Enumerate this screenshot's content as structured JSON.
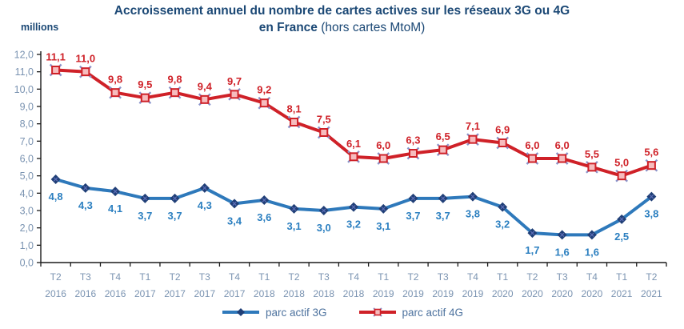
{
  "title": {
    "line1": "Accroissement annuel du nombre de cartes actives sur les réseaux 3G ou 4G",
    "line2_bold": "en France",
    "line2_suffix": " (hors cartes MtoM)"
  },
  "colors": {
    "title": "#1B4875",
    "axis": "#1a1a1a",
    "axis_labels": "#7A93B1",
    "legend_text": "#4D729E"
  },
  "chart_data": {
    "type": "line",
    "title": "Accroissement annuel du nombre de cartes actives sur les réseaux 3G ou 4G en France (hors cartes MtoM)",
    "ylabel": "millions",
    "xlabel": "",
    "ylim": [
      0,
      12
    ],
    "ytick_step": 1,
    "grid": false,
    "legend_position": "bottom",
    "decimal_separator": ",",
    "categories": [
      {
        "q": "T2",
        "year": "2016"
      },
      {
        "q": "T3",
        "year": "2016"
      },
      {
        "q": "T4",
        "year": "2016"
      },
      {
        "q": "T1",
        "year": "2017"
      },
      {
        "q": "T2",
        "year": "2017"
      },
      {
        "q": "T3",
        "year": "2017"
      },
      {
        "q": "T4",
        "year": "2017"
      },
      {
        "q": "T1",
        "year": "2018"
      },
      {
        "q": "T2",
        "year": "2018"
      },
      {
        "q": "T3",
        "year": "2018"
      },
      {
        "q": "T4",
        "year": "2018"
      },
      {
        "q": "T1",
        "year": "2019"
      },
      {
        "q": "T2",
        "year": "2019"
      },
      {
        "q": "T3",
        "year": "2019"
      },
      {
        "q": "T4",
        "year": "2019"
      },
      {
        "q": "T1",
        "year": "2020"
      },
      {
        "q": "T2",
        "year": "2020"
      },
      {
        "q": "T3",
        "year": "2020"
      },
      {
        "q": "T4",
        "year": "2020"
      },
      {
        "q": "T1",
        "year": "2021"
      },
      {
        "q": "T2",
        "year": "2021"
      }
    ],
    "series": [
      {
        "name": "parc actif 3G",
        "marker": "diamond",
        "line_color": "#2E79BB",
        "marker_color": "#203F77",
        "marker_x_color": "#5E6FB8",
        "label_color": "#2B7FC0",
        "label_side": "below",
        "values": [
          4.8,
          4.3,
          4.1,
          3.7,
          3.7,
          4.3,
          3.4,
          3.6,
          3.1,
          3.0,
          3.2,
          3.1,
          3.7,
          3.7,
          3.8,
          3.2,
          1.7,
          1.6,
          1.6,
          2.5,
          3.8
        ]
      },
      {
        "name": "parc actif 4G",
        "marker": "x-square",
        "line_color": "#CF2128",
        "marker_fill": "#F6BCBE",
        "marker_stroke": "#CF2128",
        "marker_x_color": "#8A94CB",
        "label_color": "#CF2128",
        "label_side": "above",
        "values": [
          11.1,
          11.0,
          9.8,
          9.5,
          9.8,
          9.4,
          9.7,
          9.2,
          8.1,
          7.5,
          6.1,
          6.0,
          6.3,
          6.5,
          7.1,
          6.9,
          6.0,
          6.0,
          5.5,
          5.0,
          5.6
        ]
      }
    ]
  }
}
